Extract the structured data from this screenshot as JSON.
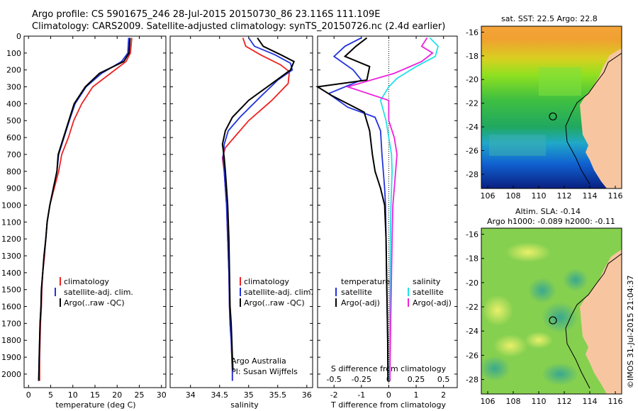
{
  "header": {
    "line1": "Argo profile: CS 5901675_246 28-Jul-2015 20150730_86 23.116S 111.109E",
    "line2": "Climatology: CARS2009. Satellite-adjusted climatology: synTS_20150726.nc (2.4d earlier)"
  },
  "colors": {
    "clim": "#ee2222",
    "sat": "#2233dd",
    "argo": "#000000",
    "sal_sat": "#22e0e8",
    "sal_argo": "#ee22dd",
    "land": "#f7c6a0"
  },
  "depth_axis": {
    "ticks": [
      "0",
      "100",
      "200",
      "300",
      "400",
      "500",
      "600",
      "700",
      "800",
      "900",
      "1000",
      "1100",
      "1200",
      "1300",
      "1400",
      "1500",
      "1600",
      "1700",
      "1800",
      "1900",
      "2000"
    ]
  },
  "chart_data": [
    {
      "type": "line",
      "id": "temperature",
      "xlabel": "temperature (deg C)",
      "xlim": [
        -1,
        31
      ],
      "ylim": [
        0,
        2080
      ],
      "xticks": [
        0,
        5,
        10,
        15,
        20,
        25,
        30
      ],
      "xtick_labels": [
        "0",
        "5",
        "10",
        "15",
        "20",
        "25",
        "30"
      ],
      "legend": [
        "climatology",
        "satellite-adj. clim.",
        "Argo(..raw -QC)"
      ],
      "series": [
        {
          "name": "climatology",
          "color": "clim",
          "x": [
            23.3,
            23.0,
            22.0,
            18.5,
            14.5,
            12.0,
            10.2,
            9.0,
            7.5,
            6.8,
            5.8,
            4.8,
            4.2,
            3.9,
            3.6,
            3.2,
            3.0,
            2.9,
            2.7,
            2.6,
            2.5,
            2.5
          ],
          "y": [
            10,
            100,
            150,
            220,
            300,
            400,
            500,
            600,
            700,
            800,
            900,
            1000,
            1100,
            1200,
            1300,
            1400,
            1500,
            1600,
            1700,
            1800,
            1900,
            2040
          ]
        },
        {
          "name": "satellite-adj. clim.",
          "color": "sat",
          "x": [
            22.6,
            22.4,
            21.0,
            16.5,
            13.0,
            10.5,
            9.2,
            8.0,
            6.8,
            6.4,
            5.6,
            4.8,
            4.2,
            3.9,
            3.5,
            3.2,
            2.9,
            2.8,
            2.6,
            2.5,
            2.4,
            2.3
          ],
          "y": [
            10,
            100,
            150,
            220,
            300,
            400,
            500,
            600,
            700,
            800,
            900,
            1000,
            1100,
            1200,
            1300,
            1400,
            1500,
            1600,
            1700,
            1800,
            1900,
            2040
          ]
        },
        {
          "name": "Argo",
          "color": "argo",
          "x": [
            22.9,
            22.7,
            21.5,
            16.0,
            12.8,
            10.3,
            9.1,
            7.9,
            6.7,
            6.4,
            5.6,
            4.8,
            4.2,
            3.9,
            3.5,
            3.2,
            2.9,
            2.8,
            2.6,
            2.5,
            2.4,
            2.3
          ],
          "y": [
            10,
            100,
            150,
            220,
            300,
            400,
            500,
            600,
            700,
            800,
            900,
            1000,
            1100,
            1200,
            1300,
            1400,
            1500,
            1600,
            1700,
            1800,
            1900,
            2040
          ]
        }
      ]
    },
    {
      "type": "line",
      "id": "salinity",
      "xlabel": "salinity",
      "xlim": [
        33.65,
        36.1
      ],
      "ylim": [
        0,
        2080
      ],
      "xticks": [
        34,
        34.5,
        35,
        35.5,
        36
      ],
      "xtick_labels": [
        "34",
        "34.5",
        "35",
        "35.5",
        "36"
      ],
      "legend": [
        "climatology",
        "satellite-adj. clim.",
        "Argo(..raw -QC)"
      ],
      "notes": [
        "Argo Australia",
        "PI: Susan Wijffels"
      ],
      "series": [
        {
          "name": "climatology",
          "color": "clim",
          "x": [
            34.9,
            34.95,
            35.2,
            35.55,
            35.7,
            35.68,
            35.4,
            35.0,
            34.75,
            34.6,
            34.55,
            34.58,
            34.6,
            34.62,
            34.64,
            34.66,
            34.67,
            34.68,
            34.7,
            34.71,
            34.72,
            34.72
          ],
          "y": [
            10,
            60,
            110,
            170,
            210,
            280,
            380,
            500,
            600,
            660,
            720,
            800,
            900,
            1000,
            1200,
            1400,
            1600,
            1700,
            1800,
            1900,
            1980,
            2040
          ]
        },
        {
          "name": "satellite-adj. clim.",
          "color": "sat",
          "x": [
            35.0,
            35.1,
            35.45,
            35.72,
            35.75,
            35.5,
            35.2,
            34.85,
            34.65,
            34.58,
            34.56,
            34.58,
            34.6,
            34.62,
            34.64,
            34.66,
            34.67,
            34.68,
            34.7,
            34.71,
            34.72,
            34.72
          ],
          "y": [
            10,
            60,
            110,
            160,
            200,
            260,
            360,
            480,
            560,
            640,
            720,
            800,
            900,
            1000,
            1200,
            1400,
            1600,
            1700,
            1800,
            1900,
            1980,
            2040
          ]
        },
        {
          "name": "Argo",
          "color": "argo",
          "x": [
            35.15,
            35.25,
            35.55,
            35.78,
            35.72,
            35.4,
            35.0,
            34.72,
            34.6,
            34.55,
            34.58,
            34.6,
            34.62,
            34.64,
            34.66,
            34.67,
            34.68,
            34.7,
            34.71,
            34.72,
            34.73
          ],
          "y": [
            10,
            60,
            110,
            150,
            200,
            280,
            380,
            480,
            560,
            640,
            720,
            800,
            900,
            1000,
            1200,
            1400,
            1600,
            1700,
            1800,
            1900,
            1980
          ]
        }
      ]
    },
    {
      "type": "line",
      "id": "difference",
      "xlabel": "T difference from climatology",
      "top_label": "S difference from climatology",
      "xlim": [
        -2.6,
        2.5
      ],
      "ylim": [
        0,
        2080
      ],
      "xticks": [
        -2,
        -1,
        0,
        1,
        2
      ],
      "xtick_labels": [
        "-2",
        "-1",
        "0",
        "1",
        "2"
      ],
      "sticks": [
        -2,
        -1,
        0,
        1,
        2
      ],
      "stick_labels": [
        "-0.5",
        "-0.25",
        "0",
        "0.25",
        "0.5"
      ],
      "legend_temperature": [
        "temperature",
        "satellite",
        "Argo(-adj)"
      ],
      "legend_salinity": [
        "salinity",
        "satellite",
        "Argo(-adj)"
      ],
      "series": [
        {
          "name": "T satellite",
          "color": "sat",
          "x": [
            -1.0,
            -1.6,
            -2.0,
            -1.3,
            -1.0,
            -2.2,
            -1.5,
            -0.5,
            -0.3,
            -0.25,
            -0.2,
            -0.15,
            -0.12,
            -0.1,
            -0.08,
            -0.06,
            -0.05,
            -0.04,
            -0.03
          ],
          "y": [
            10,
            60,
            120,
            200,
            260,
            340,
            420,
            480,
            560,
            700,
            800,
            900,
            1000,
            1200,
            1400,
            1600,
            1700,
            1800,
            2040
          ]
        },
        {
          "name": "T Argo(-adj)",
          "color": "argo",
          "x": [
            -0.8,
            -1.2,
            -1.6,
            -0.7,
            -0.8,
            -2.6,
            -2.1,
            -0.9,
            -0.7,
            -0.6,
            -0.5,
            -0.3,
            -0.15,
            -0.1,
            -0.08,
            -0.06,
            -0.05,
            -0.04,
            -0.03
          ],
          "y": [
            10,
            60,
            120,
            180,
            260,
            300,
            350,
            450,
            560,
            700,
            800,
            900,
            1000,
            1200,
            1400,
            1600,
            1700,
            1800,
            2040
          ]
        },
        {
          "name": "S satellite",
          "color": "sal_sat",
          "x": [
            1.5,
            1.8,
            1.7,
            1.0,
            0.3,
            0.0,
            -0.3,
            -0.1,
            0.0,
            0.1,
            0.12,
            0.1,
            0.08,
            0.06,
            0.05,
            0.04,
            0.04,
            0.03
          ],
          "y": [
            10,
            60,
            120,
            180,
            250,
            300,
            380,
            500,
            600,
            700,
            800,
            900,
            1000,
            1200,
            1400,
            1600,
            1800,
            2040
          ]
        },
        {
          "name": "S Argo(-adj)",
          "color": "sal_argo",
          "x": [
            1.4,
            1.2,
            1.6,
            1.2,
            0.2,
            -1.5,
            0.0,
            0.0,
            0.2,
            0.3,
            0.25,
            0.2,
            0.15,
            0.12,
            0.1,
            0.08,
            0.06,
            0.05,
            0.04
          ],
          "y": [
            10,
            60,
            100,
            150,
            220,
            300,
            380,
            500,
            600,
            700,
            800,
            900,
            1000,
            1200,
            1400,
            1600,
            1800,
            1900,
            2040
          ]
        }
      ]
    },
    {
      "type": "heatmap",
      "id": "sst_map",
      "title": "sat. SST: 22.5 Argo: 22.8",
      "xlim": [
        105.5,
        116.5
      ],
      "ylim": [
        -29.2,
        -15.5
      ],
      "xticks": [
        106,
        108,
        110,
        112,
        114,
        116
      ],
      "xtick_labels": [
        "106",
        "108",
        "110",
        "112",
        "114",
        "116"
      ],
      "yticks": [
        -16,
        -18,
        -20,
        -22,
        -24,
        -26,
        -28
      ],
      "ytick_labels": [
        "-16",
        "-18",
        "-20",
        "-22",
        "-24",
        "-26",
        "-28"
      ],
      "marker": {
        "lon": 111.109,
        "lat": -23.116
      }
    },
    {
      "type": "heatmap",
      "id": "sla_map",
      "title": "Altim. SLA: -0.14",
      "subtitle": "Argo h1000: -0.089 h2000: -0.11",
      "xlim": [
        105.5,
        116.5
      ],
      "ylim": [
        -29.2,
        -15.5
      ],
      "xticks": [
        106,
        108,
        110,
        112,
        114,
        116
      ],
      "xtick_labels": [
        "106",
        "108",
        "110",
        "112",
        "114",
        "116"
      ],
      "yticks": [
        -16,
        -18,
        -20,
        -22,
        -24,
        -26,
        -28
      ],
      "ytick_labels": [
        "-16",
        "-18",
        "-20",
        "-22",
        "-24",
        "-26",
        "-28"
      ],
      "marker": {
        "lon": 111.109,
        "lat": -23.116
      }
    }
  ],
  "copyright": "©IMOS 31-Jul-2015 21:04:37"
}
